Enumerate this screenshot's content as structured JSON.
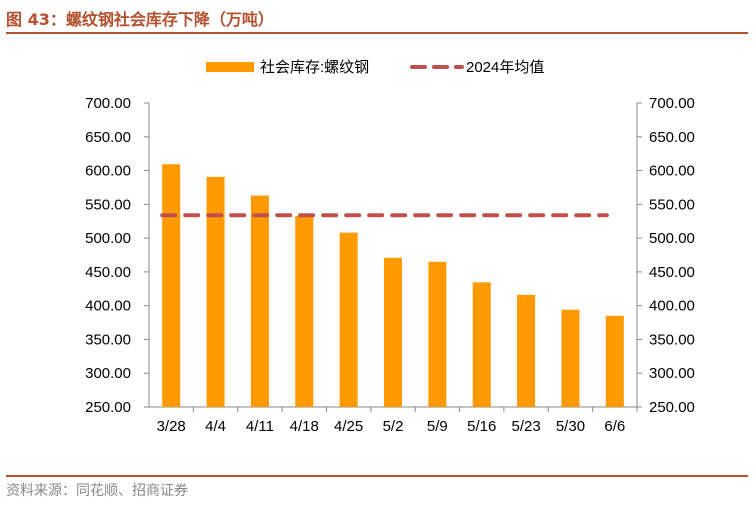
{
  "title": "图 43：螺纹钢社会库存下降（万吨）",
  "source": "资料来源：同花顺、招商证券",
  "chart_data": {
    "type": "bar",
    "categories": [
      "3/28",
      "4/4",
      "4/11",
      "4/18",
      "4/25",
      "5/2",
      "5/9",
      "5/16",
      "5/23",
      "5/30",
      "6/6"
    ],
    "series": [
      {
        "name": "社会库存:螺纹钢",
        "type": "bar",
        "color": "#ff9900",
        "values": [
          609.3,
          590.7,
          563.0,
          532.9,
          508.1,
          470.8,
          464.9,
          434.5,
          416.0,
          394.0,
          385.0
        ]
      },
      {
        "name": "2024年均值",
        "type": "line",
        "style": "dashed",
        "color": "#c0504d",
        "value": 533.8
      }
    ],
    "ylim": [
      250,
      700
    ],
    "yticks": [
      "250.00",
      "300.00",
      "350.00",
      "400.00",
      "450.00",
      "500.00",
      "550.00",
      "600.00",
      "650.00",
      "700.00"
    ],
    "legend": "top"
  }
}
